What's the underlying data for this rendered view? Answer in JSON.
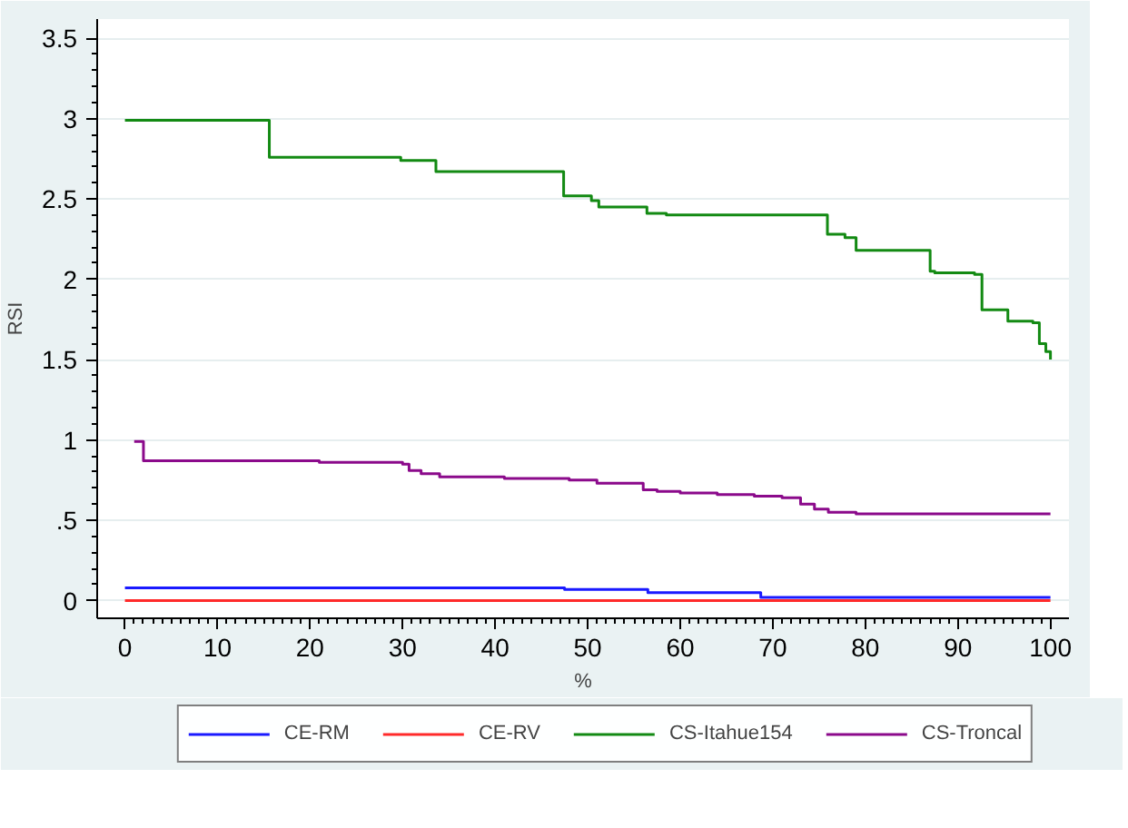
{
  "chart_data": {
    "type": "step",
    "xlabel": "%",
    "ylabel": "RSI",
    "xlim": [
      -3,
      102
    ],
    "ylim": [
      -0.11,
      3.62
    ],
    "xticks": [
      0,
      10,
      20,
      30,
      40,
      50,
      60,
      70,
      80,
      90,
      100
    ],
    "yticks": [
      0,
      {
        "value": 0.5,
        "label": ".5"
      },
      1,
      1.5,
      2,
      2.5,
      3,
      3.5
    ],
    "grid": "y",
    "legend": "bottom",
    "line_style": "solid",
    "marker": "none",
    "series": [
      {
        "name": "CE-RM",
        "color": "#1a1aff",
        "x": [
          0,
          47.5,
          56.5,
          59.5,
          68.7,
          100
        ],
        "values": [
          0.08,
          0.07,
          0.05,
          0.05,
          0.02,
          0.02
        ]
      },
      {
        "name": "CE-RV",
        "color": "#ff2a2a",
        "x": [
          0,
          100
        ],
        "values": [
          0,
          0
        ]
      },
      {
        "name": "CS-Itahue154",
        "color": "#138a13",
        "x": [
          0,
          15.6,
          29.8,
          33.6,
          47.4,
          50.4,
          51.2,
          56.4,
          58.5,
          75.9,
          77.8,
          79,
          87,
          87.5,
          91.8,
          92.6,
          95.4,
          98.1,
          98.8,
          99.5,
          100
        ],
        "values": [
          2.99,
          2.76,
          2.74,
          2.67,
          2.52,
          2.49,
          2.45,
          2.41,
          2.4,
          2.28,
          2.26,
          2.18,
          2.05,
          2.04,
          2.03,
          1.81,
          1.74,
          1.73,
          1.6,
          1.55,
          1.5
        ]
      },
      {
        "name": "CS-Troncal",
        "color": "#8b0a8b",
        "x": [
          1,
          2,
          21,
          30,
          30.7,
          32,
          34,
          41,
          48,
          51,
          56,
          57.5,
          60,
          64,
          68,
          71,
          73,
          74.5,
          76,
          79,
          100
        ],
        "values": [
          0.99,
          0.87,
          0.86,
          0.85,
          0.81,
          0.79,
          0.77,
          0.76,
          0.75,
          0.73,
          0.69,
          0.68,
          0.67,
          0.66,
          0.65,
          0.64,
          0.6,
          0.57,
          0.55,
          0.54,
          0.54
        ]
      }
    ]
  }
}
